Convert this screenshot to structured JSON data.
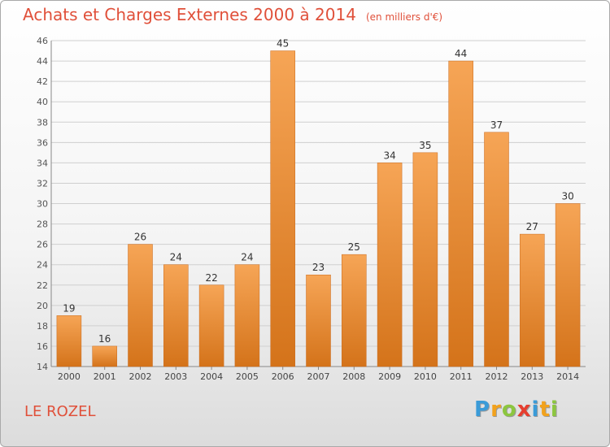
{
  "title": "Achats et Charges Externes 2000 à 2014",
  "subtitle": "(en milliers d'€)",
  "place": "LE ROZEL",
  "brand": {
    "letters": [
      {
        "ch": "P",
        "color": "#3a9bd8"
      },
      {
        "ch": "r",
        "color": "#f2a21c"
      },
      {
        "ch": "o",
        "color": "#8cc63f"
      },
      {
        "ch": "x",
        "color": "#e63e2f"
      },
      {
        "ch": "i",
        "color": "#3a9bd8"
      },
      {
        "ch": "t",
        "color": "#f2a21c"
      },
      {
        "ch": "i",
        "color": "#8cc63f"
      }
    ]
  },
  "colors": {
    "title": "#e0503a",
    "bar_light": "#f6a556",
    "bar_dark": "#d4731a"
  },
  "chart_data": {
    "type": "bar",
    "title": "Achats et Charges Externes 2000 à 2014",
    "subtitle": "(en milliers d'€)",
    "categories": [
      "2000",
      "2001",
      "2002",
      "2003",
      "2004",
      "2005",
      "2006",
      "2007",
      "2008",
      "2009",
      "2010",
      "2011",
      "2012",
      "2013",
      "2014"
    ],
    "values": [
      19,
      16,
      26,
      24,
      22,
      24,
      45,
      23,
      25,
      34,
      35,
      44,
      37,
      27,
      30
    ],
    "ylim": [
      14,
      46
    ],
    "yticks": [
      14,
      16,
      18,
      20,
      22,
      24,
      26,
      28,
      30,
      32,
      34,
      36,
      38,
      40,
      42,
      44,
      46
    ],
    "grid": true,
    "data_labels": true
  }
}
